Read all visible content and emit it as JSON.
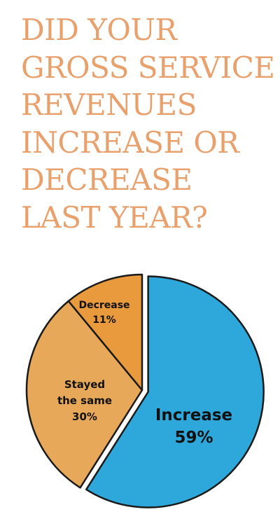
{
  "title_lines": [
    "DID YOUR",
    "GROSS SERVICE",
    "REVENUES",
    "INCREASE OR",
    "DECREASE",
    "LAST YEAR?"
  ],
  "colors": {
    "title": "#e8a06c",
    "increase": "#2ea8db",
    "stayed_the_same": "#e8a85a",
    "decrease": "#e89a3c",
    "outline": "#1a1a1a"
  },
  "chart_data": {
    "type": "pie",
    "title": "DID YOUR GROSS SERVICE REVENUES INCREASE OR DECREASE LAST YEAR?",
    "slices": [
      {
        "label_lines": [
          "Increase"
        ],
        "value": 59,
        "value_label": "59%",
        "color": "#2ea8db",
        "exploded": true
      },
      {
        "label_lines": [
          "Stayed",
          "the same"
        ],
        "value": 30,
        "value_label": "30%",
        "color": "#e8a85a",
        "exploded": false
      },
      {
        "label_lines": [
          "Decrease"
        ],
        "value": 11,
        "value_label": "11%",
        "color": "#e89a3c",
        "exploded": false
      }
    ]
  }
}
